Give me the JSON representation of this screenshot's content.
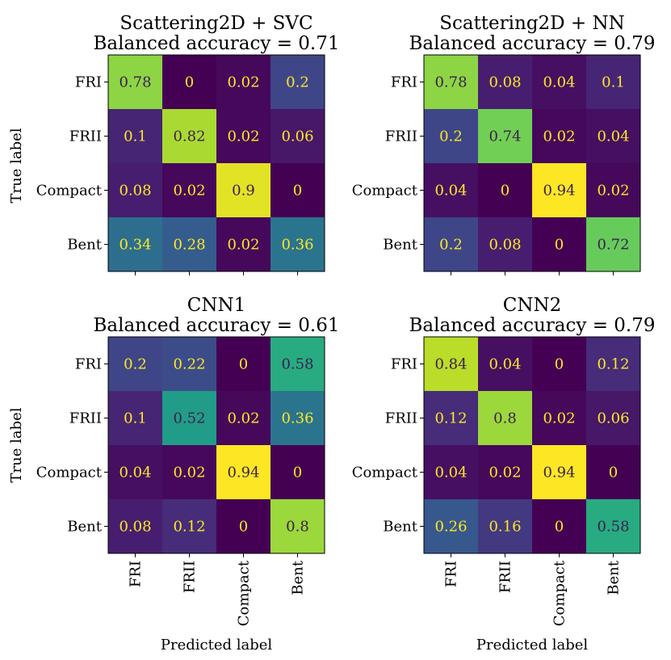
{
  "figure": {
    "row_labels": [
      "FRI",
      "FRII",
      "Compact",
      "Bent"
    ],
    "col_labels": [
      "FRI",
      "FRII",
      "Compact",
      "Bent"
    ],
    "ylabel": "True label",
    "xlabel": "Predicted label"
  },
  "chart_data": [
    {
      "type": "heatmap",
      "title": "Scattering2D + SVC",
      "subtitle": "Balanced accuracy = 0.71",
      "rows": [
        "FRI",
        "FRII",
        "Compact",
        "Bent"
      ],
      "cols": [
        "FRI",
        "FRII",
        "Compact",
        "Bent"
      ],
      "values": [
        [
          0.78,
          0,
          0.02,
          0.2
        ],
        [
          0.1,
          0.82,
          0.02,
          0.06
        ],
        [
          0.08,
          0.02,
          0.9,
          0
        ],
        [
          0.34,
          0.28,
          0.02,
          0.36
        ]
      ],
      "colormap": "viridis",
      "vmin": 0,
      "vmax": 0.94
    },
    {
      "type": "heatmap",
      "title": "Scattering2D + NN",
      "subtitle": "Balanced accuracy = 0.79",
      "rows": [
        "FRI",
        "FRII",
        "Compact",
        "Bent"
      ],
      "cols": [
        "FRI",
        "FRII",
        "Compact",
        "Bent"
      ],
      "values": [
        [
          0.78,
          0.08,
          0.04,
          0.1
        ],
        [
          0.2,
          0.74,
          0.02,
          0.04
        ],
        [
          0.04,
          0,
          0.94,
          0.02
        ],
        [
          0.2,
          0.08,
          0,
          0.72
        ]
      ],
      "colormap": "viridis",
      "vmin": 0,
      "vmax": 0.94
    },
    {
      "type": "heatmap",
      "title": "CNN1",
      "subtitle": "Balanced accuracy = 0.61",
      "rows": [
        "FRI",
        "FRII",
        "Compact",
        "Bent"
      ],
      "cols": [
        "FRI",
        "FRII",
        "Compact",
        "Bent"
      ],
      "values": [
        [
          0.2,
          0.22,
          0,
          0.58
        ],
        [
          0.1,
          0.52,
          0.02,
          0.36
        ],
        [
          0.04,
          0.02,
          0.94,
          0
        ],
        [
          0.08,
          0.12,
          0,
          0.8
        ]
      ],
      "colormap": "viridis",
      "vmin": 0,
      "vmax": 0.94
    },
    {
      "type": "heatmap",
      "title": "CNN2",
      "subtitle": "Balanced accuracy = 0.79",
      "rows": [
        "FRI",
        "FRII",
        "Compact",
        "Bent"
      ],
      "cols": [
        "FRI",
        "FRII",
        "Compact",
        "Bent"
      ],
      "values": [
        [
          0.84,
          0.04,
          0,
          0.12
        ],
        [
          0.12,
          0.8,
          0.02,
          0.06
        ],
        [
          0.04,
          0.02,
          0.94,
          0
        ],
        [
          0.26,
          0.16,
          0,
          0.58
        ]
      ],
      "colormap": "viridis",
      "vmin": 0,
      "vmax": 0.94
    }
  ]
}
